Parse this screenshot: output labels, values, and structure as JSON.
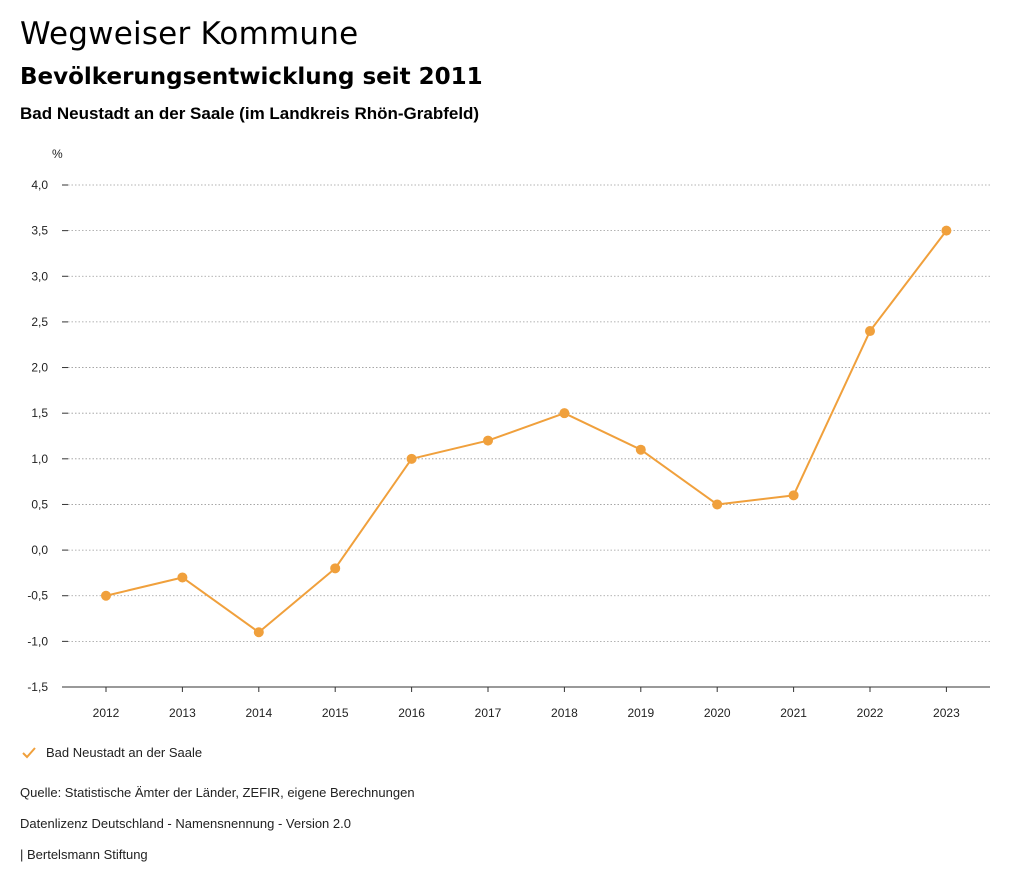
{
  "header": {
    "title": "Wegweiser Kommune",
    "subtitle": "Bevölkerungsentwicklung seit 2011",
    "region": "Bad Neustadt an der Saale (im Landkreis Rhön-Grabfeld)"
  },
  "colors": {
    "series": "#f0a03c",
    "grid": "#9a9a9a",
    "axis": "#333333"
  },
  "chart_data": {
    "type": "line",
    "title": "Bevölkerungsentwicklung seit 2011",
    "ylabel": "%",
    "xlabel": "",
    "ylim": [
      -1.5,
      4.0
    ],
    "yticks": [
      4.0,
      3.5,
      3.0,
      2.5,
      2.0,
      1.5,
      1.0,
      0.5,
      0.0,
      -0.5,
      -1.0,
      -1.5
    ],
    "ytick_labels": [
      "4,0",
      "3,5",
      "3,0",
      "2,5",
      "2,0",
      "1,5",
      "1,0",
      "0,5",
      "0,0",
      "-0,5",
      "-1,0",
      "-1,5"
    ],
    "grid": true,
    "categories": [
      "2012",
      "2013",
      "2014",
      "2015",
      "2016",
      "2017",
      "2018",
      "2019",
      "2020",
      "2021",
      "2022",
      "2023"
    ],
    "series": [
      {
        "name": "Bad Neustadt an der Saale",
        "values": [
          -0.5,
          -0.3,
          -0.9,
          -0.2,
          1.0,
          1.2,
          1.5,
          1.1,
          0.5,
          0.6,
          2.4,
          3.5
        ]
      }
    ],
    "legend_position": "bottom-left"
  },
  "legend": {
    "label": "Bad Neustadt an der Saale"
  },
  "footer": {
    "source": "Quelle: Statistische Ämter der Länder, ZEFIR, eigene Berechnungen",
    "license": "Datenlizenz Deutschland - Namensnennung - Version 2.0",
    "brand": "| Bertelsmann Stiftung"
  }
}
